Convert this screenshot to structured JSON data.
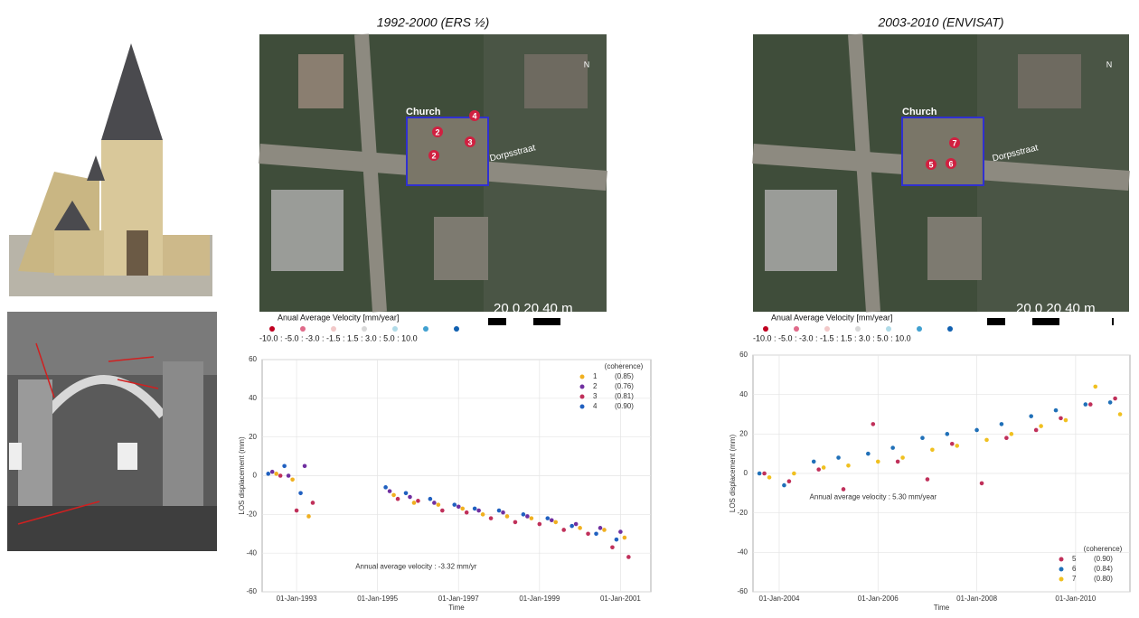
{
  "chart_data": [
    {
      "type": "scatter",
      "y_label": "LOS displacement (mm)",
      "x_label": "Time",
      "annotation": "Annual average velocity : -3.32 mm/yr",
      "legend_title": "(coherence)",
      "legend": "upper right",
      "grid": true,
      "xlim": [
        1992.15,
        2001.75
      ],
      "ylim": [
        -60,
        60
      ],
      "xticks": [
        {
          "value": 1993,
          "label": "01-Jan-1993"
        },
        {
          "value": 1995,
          "label": "01-Jan-1995"
        },
        {
          "value": 1997,
          "label": "01-Jan-1997"
        },
        {
          "value": 1999,
          "label": "01-Jan-1999"
        },
        {
          "value": 2001,
          "label": "01-Jan-2001"
        }
      ],
      "yticks": [
        -60,
        -40,
        -20,
        0,
        20,
        40,
        60
      ],
      "series": [
        {
          "name": "1",
          "coherence": "(0.85)",
          "color": "#f0b020",
          "x": [
            1992.5,
            1992.9,
            1993.3,
            1995.4,
            1995.9,
            1996.5,
            1997.1,
            1997.6,
            1998.2,
            1998.8,
            1999.4,
            2000.0,
            2000.6,
            2001.1
          ],
          "values": [
            1,
            -2,
            -21,
            -10,
            -14,
            -15,
            -17,
            -20,
            -21,
            -22,
            -24,
            -27,
            -28,
            -32
          ]
        },
        {
          "name": "2",
          "coherence": "(0.76)",
          "color": "#7030a0",
          "x": [
            1992.4,
            1992.8,
            1993.2,
            1995.3,
            1995.8,
            1996.4,
            1997.0,
            1997.5,
            1998.1,
            1998.7,
            1999.3,
            1999.9,
            2000.5,
            2001.0
          ],
          "values": [
            2,
            0,
            5,
            -8,
            -11,
            -14,
            -16,
            -18,
            -19,
            -21,
            -23,
            -25,
            -27,
            -29
          ]
        },
        {
          "name": "3",
          "coherence": "(0.81)",
          "color": "#c0305a",
          "x": [
            1992.6,
            1993.0,
            1993.4,
            1995.5,
            1996.0,
            1996.6,
            1997.2,
            1997.8,
            1998.4,
            1999.0,
            1999.6,
            2000.2,
            2000.8,
            2001.2
          ],
          "values": [
            0,
            -18,
            -14,
            -12,
            -13,
            -18,
            -19,
            -22,
            -24,
            -25,
            -28,
            -30,
            -37,
            -42
          ]
        },
        {
          "name": "4",
          "coherence": "(0.90)",
          "color": "#2060c0",
          "x": [
            1992.3,
            1992.7,
            1993.1,
            1995.2,
            1995.7,
            1996.3,
            1996.9,
            1997.4,
            1998.0,
            1998.6,
            1999.2,
            1999.8,
            2000.4,
            2000.9
          ],
          "values": [
            1,
            5,
            -9,
            -6,
            -9,
            -12,
            -15,
            -17,
            -18,
            -20,
            -22,
            -26,
            -30,
            -33
          ]
        }
      ]
    },
    {
      "type": "scatter",
      "y_label": "LOS displacement (mm)",
      "x_label": "Time",
      "annotation": "Annual average velocity : 5.30 mm/year",
      "legend_title": "(coherence)",
      "legend": "lower right",
      "grid": true,
      "xlim": [
        2003.47,
        2011.1
      ],
      "ylim": [
        -60,
        60
      ],
      "xticks": [
        {
          "value": 2004,
          "label": "01-Jan-2004"
        },
        {
          "value": 2006,
          "label": "01-Jan-2006"
        },
        {
          "value": 2008,
          "label": "01-Jan-2008"
        },
        {
          "value": 2010,
          "label": "01-Jan-2010"
        }
      ],
      "yticks": [
        -60,
        -40,
        -20,
        0,
        20,
        40,
        60
      ],
      "series": [
        {
          "name": "5",
          "coherence": "(0.90)",
          "color": "#c0305a",
          "x": [
            2003.7,
            2004.2,
            2004.8,
            2005.3,
            2005.9,
            2006.4,
            2007.0,
            2007.5,
            2008.1,
            2008.6,
            2009.2,
            2009.7,
            2010.3,
            2010.8
          ],
          "values": [
            0,
            -4,
            2,
            -8,
            25,
            6,
            -3,
            15,
            -5,
            18,
            22,
            28,
            35,
            38
          ]
        },
        {
          "name": "6",
          "coherence": "(0.84)",
          "color": "#2070b8",
          "x": [
            2003.6,
            2004.1,
            2004.7,
            2005.2,
            2005.8,
            2006.3,
            2006.9,
            2007.4,
            2008.0,
            2008.5,
            2009.1,
            2009.6,
            2010.2,
            2010.7
          ],
          "values": [
            0,
            -6,
            6,
            8,
            10,
            13,
            18,
            20,
            22,
            25,
            29,
            32,
            35,
            36
          ]
        },
        {
          "name": "7",
          "coherence": "(0.80)",
          "color": "#f0c020",
          "x": [
            2003.8,
            2004.3,
            2004.9,
            2005.4,
            2006.0,
            2006.5,
            2007.1,
            2007.6,
            2008.2,
            2008.7,
            2009.3,
            2009.8,
            2010.4,
            2010.9
          ],
          "values": [
            -2,
            0,
            3,
            4,
            6,
            8,
            12,
            14,
            17,
            20,
            24,
            27,
            44,
            30
          ]
        }
      ]
    }
  ],
  "maps": [
    {
      "title": "1992-2000 (ERS ½)",
      "building": "Church",
      "street": "Dorpsstraat",
      "north": "N",
      "scale": "20   0   20   40 m",
      "points": [
        "4",
        "2",
        "3",
        "2"
      ],
      "legend_title": "Anual Average Velocity [mm/year]",
      "classes": "-10.0 : -5.0 : -3.0 : -1.5 : 1.5 : 3.0 : 5.0 : 10.0"
    },
    {
      "title": "2003-2010 (ENVISAT)",
      "building": "Church",
      "street": "Dorpsstraat",
      "north": "N",
      "scale": "20   0   20   40 m",
      "points": [
        "7",
        "5",
        "6"
      ],
      "legend_title": "Anual Average Velocity [mm/year]",
      "classes": "-10.0 : -5.0 : -3.0 : -1.5 : 1.5 : 3.0 : 5.0 : 10.0"
    }
  ]
}
